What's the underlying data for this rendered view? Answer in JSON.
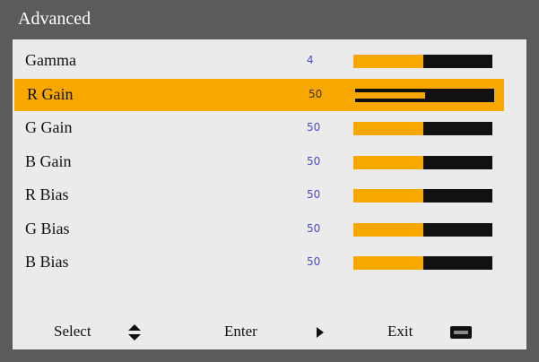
{
  "header": {
    "title": "Advanced"
  },
  "rows": [
    {
      "label": "Gamma",
      "value": 4
    },
    {
      "label": "R Gain",
      "value": 50
    },
    {
      "label": "G Gain",
      "value": 50
    },
    {
      "label": "B Gain",
      "value": 50
    },
    {
      "label": "R Bias",
      "value": 50
    },
    {
      "label": "G Bias",
      "value": 50
    },
    {
      "label": "B Bias",
      "value": 50
    }
  ],
  "footer": [
    {
      "label": "Select"
    },
    {
      "label": "Enter"
    },
    {
      "label": "Exit"
    }
  ]
}
